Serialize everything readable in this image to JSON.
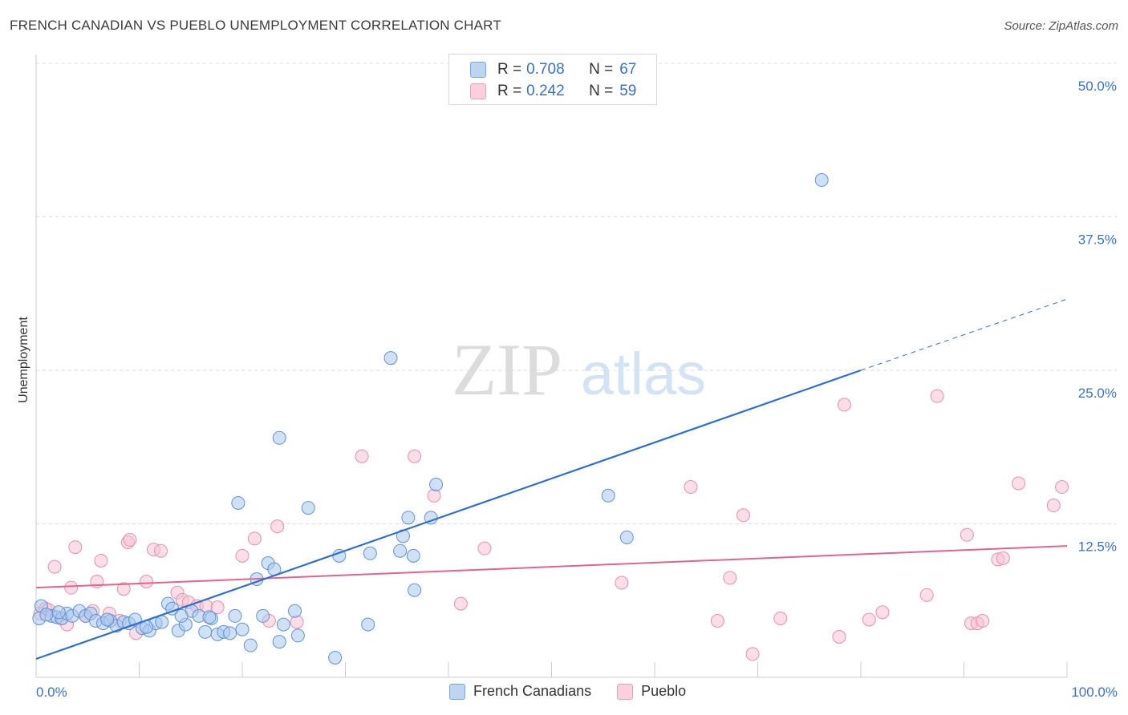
{
  "header": {
    "title": "FRENCH CANADIAN VS PUEBLO UNEMPLOYMENT CORRELATION CHART",
    "source": "Source: ZipAtlas.com"
  },
  "watermark": {
    "zip": "ZIP",
    "atlas": "atlas"
  },
  "legend": {
    "blue": {
      "r_label": "R =",
      "r_value": "0.708",
      "n_label": "N =",
      "n_value": "67",
      "name": "French Canadians",
      "color": "#a9c8ef",
      "stroke": "#6a9bd8"
    },
    "pink": {
      "r_label": "R =",
      "r_value": "0.242",
      "n_label": "N =",
      "n_value": "59",
      "name": "Pueblo",
      "color": "#f8c3d3",
      "stroke": "#e690ad"
    }
  },
  "chart_data": {
    "type": "scatter",
    "title": "FRENCH CANADIAN VS PUEBLO UNEMPLOYMENT CORRELATION CHART",
    "xlabel": "",
    "ylabel": "Unemployment",
    "xlim": [
      0,
      100
    ],
    "ylim": [
      0,
      50
    ],
    "x_tick_labels": [
      "0.0%",
      "100.0%"
    ],
    "y_ticks": [
      12.5,
      25.0,
      37.5,
      50.0
    ],
    "y_tick_labels": [
      "12.5%",
      "25.0%",
      "37.5%",
      "50.0%"
    ],
    "series": [
      {
        "name": "French Canadians",
        "color": "#a9c8ef",
        "trend": {
          "x0": 0,
          "y0": 1.5,
          "x1": 80,
          "y1": 25.0,
          "dash_to_x": 100,
          "dash_to_y": 30.8,
          "color": "#2f6fd0"
        },
        "points": [
          [
            0.3,
            4.8
          ],
          [
            0.5,
            5.8
          ],
          [
            1.5,
            5.0
          ],
          [
            2.0,
            4.9
          ],
          [
            2.5,
            4.8
          ],
          [
            3.0,
            5.2
          ],
          [
            3.5,
            5.0
          ],
          [
            4.2,
            5.4
          ],
          [
            4.8,
            5.0
          ],
          [
            5.3,
            5.2
          ],
          [
            5.8,
            4.6
          ],
          [
            6.5,
            4.4
          ],
          [
            7.2,
            4.6
          ],
          [
            7.8,
            4.2
          ],
          [
            8.5,
            4.5
          ],
          [
            9.0,
            4.4
          ],
          [
            9.6,
            4.7
          ],
          [
            10.3,
            4.0
          ],
          [
            11.0,
            3.8
          ],
          [
            11.6,
            4.4
          ],
          [
            12.2,
            4.5
          ],
          [
            12.8,
            6.0
          ],
          [
            13.2,
            5.6
          ],
          [
            13.8,
            3.8
          ],
          [
            14.5,
            4.3
          ],
          [
            15.1,
            5.4
          ],
          [
            15.8,
            5.0
          ],
          [
            16.4,
            3.7
          ],
          [
            17.0,
            4.8
          ],
          [
            17.6,
            3.5
          ],
          [
            18.2,
            3.7
          ],
          [
            18.8,
            3.6
          ],
          [
            19.3,
            5.0
          ],
          [
            19.6,
            14.2
          ],
          [
            20.8,
            2.6
          ],
          [
            21.4,
            8.0
          ],
          [
            22.0,
            5.0
          ],
          [
            22.5,
            9.3
          ],
          [
            23.1,
            8.8
          ],
          [
            23.6,
            2.9
          ],
          [
            24.0,
            4.3
          ],
          [
            25.1,
            5.4
          ],
          [
            25.4,
            3.4
          ],
          [
            26.4,
            13.8
          ],
          [
            29.0,
            1.6
          ],
          [
            29.4,
            9.9
          ],
          [
            32.2,
            4.3
          ],
          [
            32.4,
            10.1
          ],
          [
            34.4,
            26.0
          ],
          [
            35.3,
            10.3
          ],
          [
            35.6,
            11.5
          ],
          [
            36.1,
            13.0
          ],
          [
            36.6,
            9.9
          ],
          [
            36.7,
            7.1
          ],
          [
            38.3,
            13.0
          ],
          [
            38.8,
            15.7
          ],
          [
            23.6,
            19.5
          ],
          [
            55.5,
            14.8
          ],
          [
            57.3,
            11.4
          ],
          [
            76.2,
            40.5
          ],
          [
            1.0,
            5.1
          ],
          [
            2.2,
            5.3
          ],
          [
            6.9,
            4.7
          ],
          [
            10.7,
            4.1
          ],
          [
            14.1,
            5.0
          ],
          [
            16.8,
            4.9
          ],
          [
            20.0,
            3.9
          ]
        ]
      },
      {
        "name": "Pueblo",
        "color": "#f8c3d3",
        "trend": {
          "x0": 0,
          "y0": 7.3,
          "x1": 100,
          "y1": 10.7,
          "color": "#e0648e"
        },
        "points": [
          [
            0.4,
            5.2
          ],
          [
            0.9,
            5.6
          ],
          [
            1.8,
            9.0
          ],
          [
            2.4,
            4.8
          ],
          [
            3.4,
            7.3
          ],
          [
            3.8,
            10.6
          ],
          [
            4.8,
            5.0
          ],
          [
            5.5,
            5.4
          ],
          [
            5.9,
            7.8
          ],
          [
            6.3,
            9.5
          ],
          [
            7.1,
            5.2
          ],
          [
            8.1,
            4.6
          ],
          [
            8.5,
            7.2
          ],
          [
            8.9,
            11.0
          ],
          [
            9.1,
            11.2
          ],
          [
            9.7,
            3.6
          ],
          [
            10.7,
            7.8
          ],
          [
            11.4,
            10.4
          ],
          [
            12.1,
            10.3
          ],
          [
            13.7,
            6.9
          ],
          [
            14.2,
            6.3
          ],
          [
            14.8,
            6.1
          ],
          [
            15.6,
            5.8
          ],
          [
            16.5,
            5.8
          ],
          [
            17.6,
            5.7
          ],
          [
            20.0,
            9.9
          ],
          [
            21.2,
            11.3
          ],
          [
            22.6,
            4.6
          ],
          [
            23.4,
            12.3
          ],
          [
            25.3,
            4.5
          ],
          [
            31.6,
            18.0
          ],
          [
            36.7,
            18.0
          ],
          [
            38.6,
            14.8
          ],
          [
            41.2,
            6.0
          ],
          [
            43.5,
            10.5
          ],
          [
            56.8,
            7.7
          ],
          [
            63.5,
            15.5
          ],
          [
            66.1,
            4.6
          ],
          [
            67.3,
            8.1
          ],
          [
            68.6,
            13.2
          ],
          [
            69.5,
            1.9
          ],
          [
            72.2,
            4.8
          ],
          [
            77.9,
            3.3
          ],
          [
            78.4,
            22.2
          ],
          [
            80.8,
            4.7
          ],
          [
            82.1,
            5.3
          ],
          [
            86.4,
            6.7
          ],
          [
            87.4,
            22.9
          ],
          [
            90.3,
            11.6
          ],
          [
            90.7,
            4.4
          ],
          [
            91.3,
            4.4
          ],
          [
            91.8,
            4.6
          ],
          [
            93.3,
            9.6
          ],
          [
            93.8,
            9.7
          ],
          [
            95.3,
            15.8
          ],
          [
            98.7,
            14.0
          ],
          [
            99.5,
            15.5
          ],
          [
            1.2,
            5.5
          ],
          [
            3.0,
            4.3
          ]
        ]
      }
    ]
  }
}
